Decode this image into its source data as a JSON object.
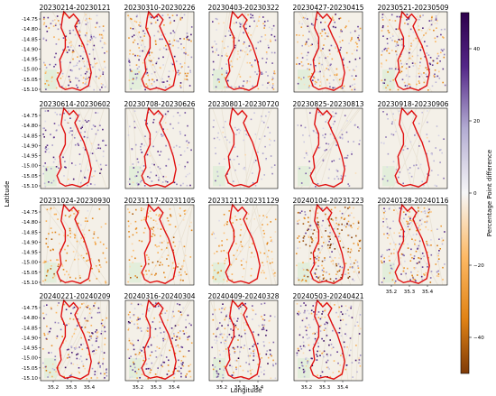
{
  "chart_data": {
    "type": "heatmap",
    "panels": [
      "20230214-20230121",
      "20230310-20230226",
      "20230403-20230322",
      "20230427-20230415",
      "20230521-20230509",
      "20230614-20230602",
      "20230708-20230626",
      "20230801-20230720",
      "20230825-20230813",
      "20230918-20230906",
      "20231024-20230930",
      "20231117-20231105",
      "20231211-20231129",
      "20240104-20231223",
      "20240128-20240116",
      "20240221-20240209",
      "20240316-20240304",
      "20240409-20240328",
      "20240503-20240421"
    ],
    "panel_intensity": [
      0.7,
      0.75,
      0.6,
      0.7,
      0.75,
      0.45,
      0.4,
      0.3,
      0.35,
      0.3,
      0.4,
      0.45,
      0.4,
      0.9,
      0.75,
      0.75,
      0.8,
      0.75,
      0.7
    ],
    "panel_bias": [
      0.2,
      0.1,
      0.2,
      0.15,
      0.1,
      0.55,
      0.5,
      0.3,
      0.4,
      0.3,
      -0.6,
      -0.6,
      -0.4,
      -0.5,
      0.0,
      0.2,
      0.2,
      0.3,
      0.35
    ],
    "xlabel": "Longitude",
    "ylabel": "Latitude",
    "x_ticks": [
      "35.2",
      "35.3",
      "35.4"
    ],
    "y_ticks": [
      "-14.75",
      "-14.80",
      "-14.85",
      "-14.90",
      "-14.95",
      "-15.00",
      "-15.05",
      "-15.10"
    ],
    "colorbar": {
      "label": "Percentage Point difference",
      "ticks": [
        "40",
        "20",
        "0",
        "−20",
        "−40"
      ],
      "range": [
        -50,
        50
      ],
      "colors": {
        "high": "#2d004b",
        "mid": "#f7f7f7",
        "low": "#7f3b08"
      }
    },
    "boundary_color": "#e01010",
    "basemap_color": "#f4f0e8",
    "grid": false
  }
}
